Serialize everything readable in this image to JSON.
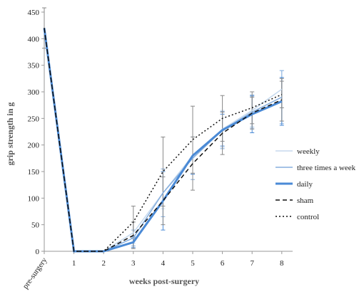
{
  "chart_data": {
    "type": "line",
    "title": "",
    "xlabel": "weeks post-surgery",
    "ylabel": "grip strength in g",
    "ylim": [
      0,
      450
    ],
    "yticks": [
      0,
      50,
      100,
      150,
      200,
      250,
      300,
      350,
      400,
      450
    ],
    "categories": [
      "pre-surgery",
      "1",
      "2",
      "3",
      "4",
      "5",
      "6",
      "7",
      "8"
    ],
    "grid": false,
    "legend_position": "right",
    "series": [
      {
        "name": "weekly",
        "color": "#c5d9ee",
        "style": "solid",
        "values": [
          420,
          0,
          0,
          35,
          110,
          180,
          230,
          265,
          305
        ],
        "error": [
          0,
          0,
          0,
          20,
          30,
          35,
          35,
          30,
          35
        ]
      },
      {
        "name": "three times a week",
        "color": "#85aede",
        "style": "solid",
        "values": [
          420,
          0,
          0,
          25,
          110,
          175,
          228,
          262,
          290
        ],
        "error": [
          0,
          0,
          0,
          15,
          45,
          40,
          35,
          30,
          50
        ]
      },
      {
        "name": "daily",
        "color": "#4a8ad6",
        "style": "solid-thick",
        "values": [
          420,
          0,
          0,
          17,
          95,
          180,
          228,
          258,
          282
        ],
        "error": [
          0,
          0,
          0,
          10,
          55,
          35,
          30,
          35,
          45
        ]
      },
      {
        "name": "sham",
        "color": "#111111",
        "style": "dashed",
        "values": [
          420,
          0,
          0,
          30,
          95,
          165,
          222,
          260,
          285
        ],
        "error": [
          0,
          0,
          0,
          25,
          45,
          50,
          40,
          30,
          40
        ]
      },
      {
        "name": "control",
        "color": "#111111",
        "style": "dotted",
        "values": [
          420,
          0,
          0,
          55,
          150,
          210,
          250,
          270,
          295
        ],
        "error": [
          38,
          0,
          0,
          30,
          65,
          63,
          43,
          30,
          25
        ]
      }
    ]
  }
}
